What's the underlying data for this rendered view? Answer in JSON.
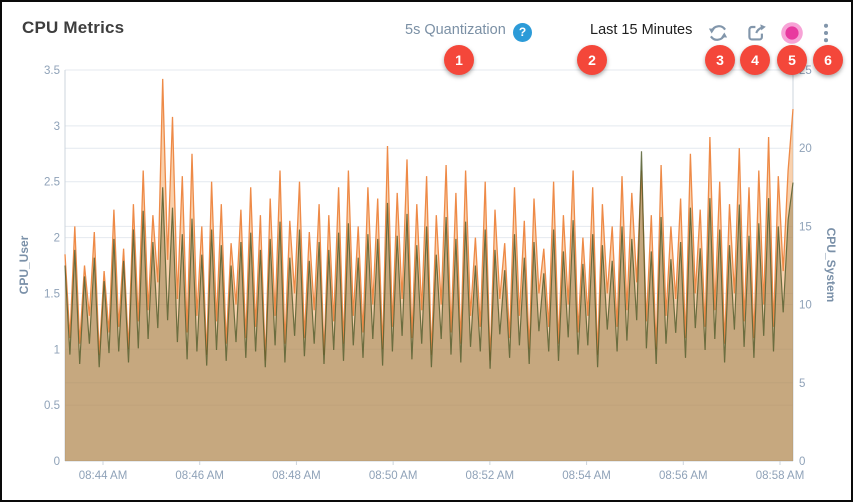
{
  "header": {
    "title": "CPU Metrics",
    "quantization_label": "5s Quantization",
    "help_glyph": "?",
    "time_range": "Last 15 Minutes"
  },
  "toolbar": {
    "icons": [
      "refresh-icon",
      "export-icon",
      "record-icon",
      "kebab-menu-icon"
    ]
  },
  "annotations": {
    "badges": [
      "1",
      "2",
      "3",
      "4",
      "5",
      "6"
    ],
    "badge_color": "#f4473a"
  },
  "colors": {
    "accent_blue": "#2c9bd8",
    "icon_gray": "#8296ab",
    "title_text": "#3e3e3e",
    "time_text": "#1f1f1f",
    "quant_text": "#7b90a5",
    "axis_text": "#8fa2b8",
    "axis_title_text": "#7a90a8",
    "grid": "#e4e9ef",
    "axis_line": "#ccd4dc",
    "user_stroke": "#ee8a47",
    "user_fill": "rgba(244,164,92,0.5)",
    "system_stroke": "rgba(80,92,44,0.82)",
    "system_fill": "rgba(128,112,64,0.42)",
    "record_outer": "#f7a3d6",
    "record_inner": "#e8399f"
  },
  "chart_data": {
    "type": "area",
    "title": "CPU Metrics",
    "quantization": "5s",
    "time_window": "Last 15 Minutes",
    "grid": true,
    "legend_position": "none",
    "x_tick_labels": [
      "08:44 AM",
      "08:46 AM",
      "08:48 AM",
      "08:50 AM",
      "08:52 AM",
      "08:54 AM",
      "08:56 AM",
      "08:58 AM"
    ],
    "left_axis": {
      "label": "CPU_User",
      "min": 0,
      "max": 3.5,
      "ticks": [
        0,
        0.5,
        1,
        1.5,
        2,
        2.5,
        3,
        3.5
      ]
    },
    "right_axis": {
      "label": "CPU_System",
      "min": 0,
      "max": 25,
      "ticks": [
        0,
        5,
        10,
        15,
        20,
        25
      ]
    },
    "series": [
      {
        "name": "CPU_User",
        "axis": "left",
        "values": [
          1.85,
          1.1,
          2.1,
          1.05,
          1.75,
          1.3,
          2.05,
          0.95,
          1.7,
          1.15,
          2.25,
          1.2,
          1.9,
          1.0,
          2.3,
          1.25,
          2.6,
          1.35,
          2.2,
          1.6,
          3.42,
          1.8,
          3.08,
          1.45,
          2.55,
          1.15,
          2.75,
          1.3,
          2.1,
          0.95,
          2.5,
          1.25,
          2.3,
          1.05,
          1.95,
          1.4,
          2.25,
          1.1,
          2.45,
          1.2,
          2.2,
          0.9,
          2.35,
          1.3,
          2.6,
          1.05,
          2.15,
          1.5,
          2.5,
          1.1,
          2.05,
          1.35,
          2.3,
          0.95,
          2.2,
          1.25,
          2.45,
          1.05,
          2.6,
          1.3,
          2.1,
          1.15,
          2.45,
          1.4,
          2.35,
          1.0,
          2.82,
          1.2,
          2.4,
          1.45,
          2.7,
          1.1,
          2.3,
          1.35,
          2.55,
          0.95,
          2.2,
          1.4,
          2.65,
          1.15,
          2.4,
          1.05,
          2.6,
          1.3,
          2.0,
          1.2,
          2.5,
          0.9,
          2.25,
          1.45,
          1.95,
          1.1,
          2.45,
          1.3,
          2.15,
          1.0,
          2.35,
          1.5,
          1.9,
          1.2,
          2.5,
          1.05,
          2.2,
          1.4,
          2.6,
          1.15,
          2.0,
          1.3,
          2.45,
          0.95,
          2.3,
          1.5,
          2.1,
          1.2,
          2.55,
          1.35,
          2.4,
          1.6,
          2.6,
          1.25,
          2.2,
          1.0,
          2.65,
          1.3,
          2.1,
          1.45,
          2.35,
          1.1,
          2.75,
          1.5,
          2.25,
          1.2,
          2.9,
          1.35,
          2.5,
          1.05,
          2.3,
          1.5,
          2.8,
          1.25,
          2.45,
          1.1,
          2.6,
          1.4,
          2.9,
          1.2,
          2.55,
          1.7,
          2.6,
          3.15
        ]
      },
      {
        "name": "CPU_System",
        "axis": "right",
        "values": [
          12.5,
          6.8,
          13.5,
          6.2,
          11.8,
          7.5,
          13.0,
          6.0,
          11.5,
          6.9,
          14.2,
          7.0,
          12.8,
          6.3,
          14.8,
          7.2,
          16.0,
          7.8,
          14.0,
          8.5,
          17.5,
          9.0,
          16.2,
          7.6,
          14.5,
          6.5,
          15.5,
          7.0,
          13.2,
          6.1,
          14.8,
          7.1,
          13.8,
          6.4,
          12.5,
          7.6,
          14.0,
          6.6,
          14.6,
          7.0,
          13.5,
          6.0,
          14.2,
          7.4,
          15.3,
          6.3,
          13.0,
          8.0,
          14.8,
          6.7,
          12.8,
          7.5,
          14.0,
          6.2,
          13.5,
          7.1,
          14.6,
          6.4,
          15.2,
          7.4,
          13.0,
          6.6,
          14.5,
          7.8,
          14.2,
          6.1,
          16.5,
          7.0,
          14.4,
          8.0,
          15.8,
          6.5,
          13.8,
          7.5,
          15.0,
          6.0,
          13.2,
          7.8,
          15.6,
          6.8,
          14.2,
          6.3,
          15.3,
          7.3,
          12.5,
          7.0,
          14.8,
          5.9,
          13.5,
          8.1,
          12.2,
          6.6,
          14.5,
          7.4,
          13.0,
          6.2,
          14.0,
          8.3,
          12.0,
          7.0,
          14.8,
          6.4,
          13.4,
          7.9,
          15.4,
          6.8,
          12.6,
          7.4,
          14.5,
          6.0,
          13.8,
          8.4,
          12.8,
          7.0,
          15.0,
          7.7,
          14.2,
          9.0,
          19.8,
          7.2,
          13.4,
          6.2,
          15.6,
          7.5,
          12.9,
          8.2,
          14.0,
          6.6,
          16.2,
          8.5,
          13.6,
          7.1,
          16.8,
          7.8,
          14.8,
          6.3,
          13.8,
          8.4,
          16.4,
          7.3,
          14.4,
          6.6,
          15.2,
          8.0,
          16.8,
          7.0,
          15.0,
          9.5,
          15.4,
          17.8
        ]
      }
    ]
  }
}
